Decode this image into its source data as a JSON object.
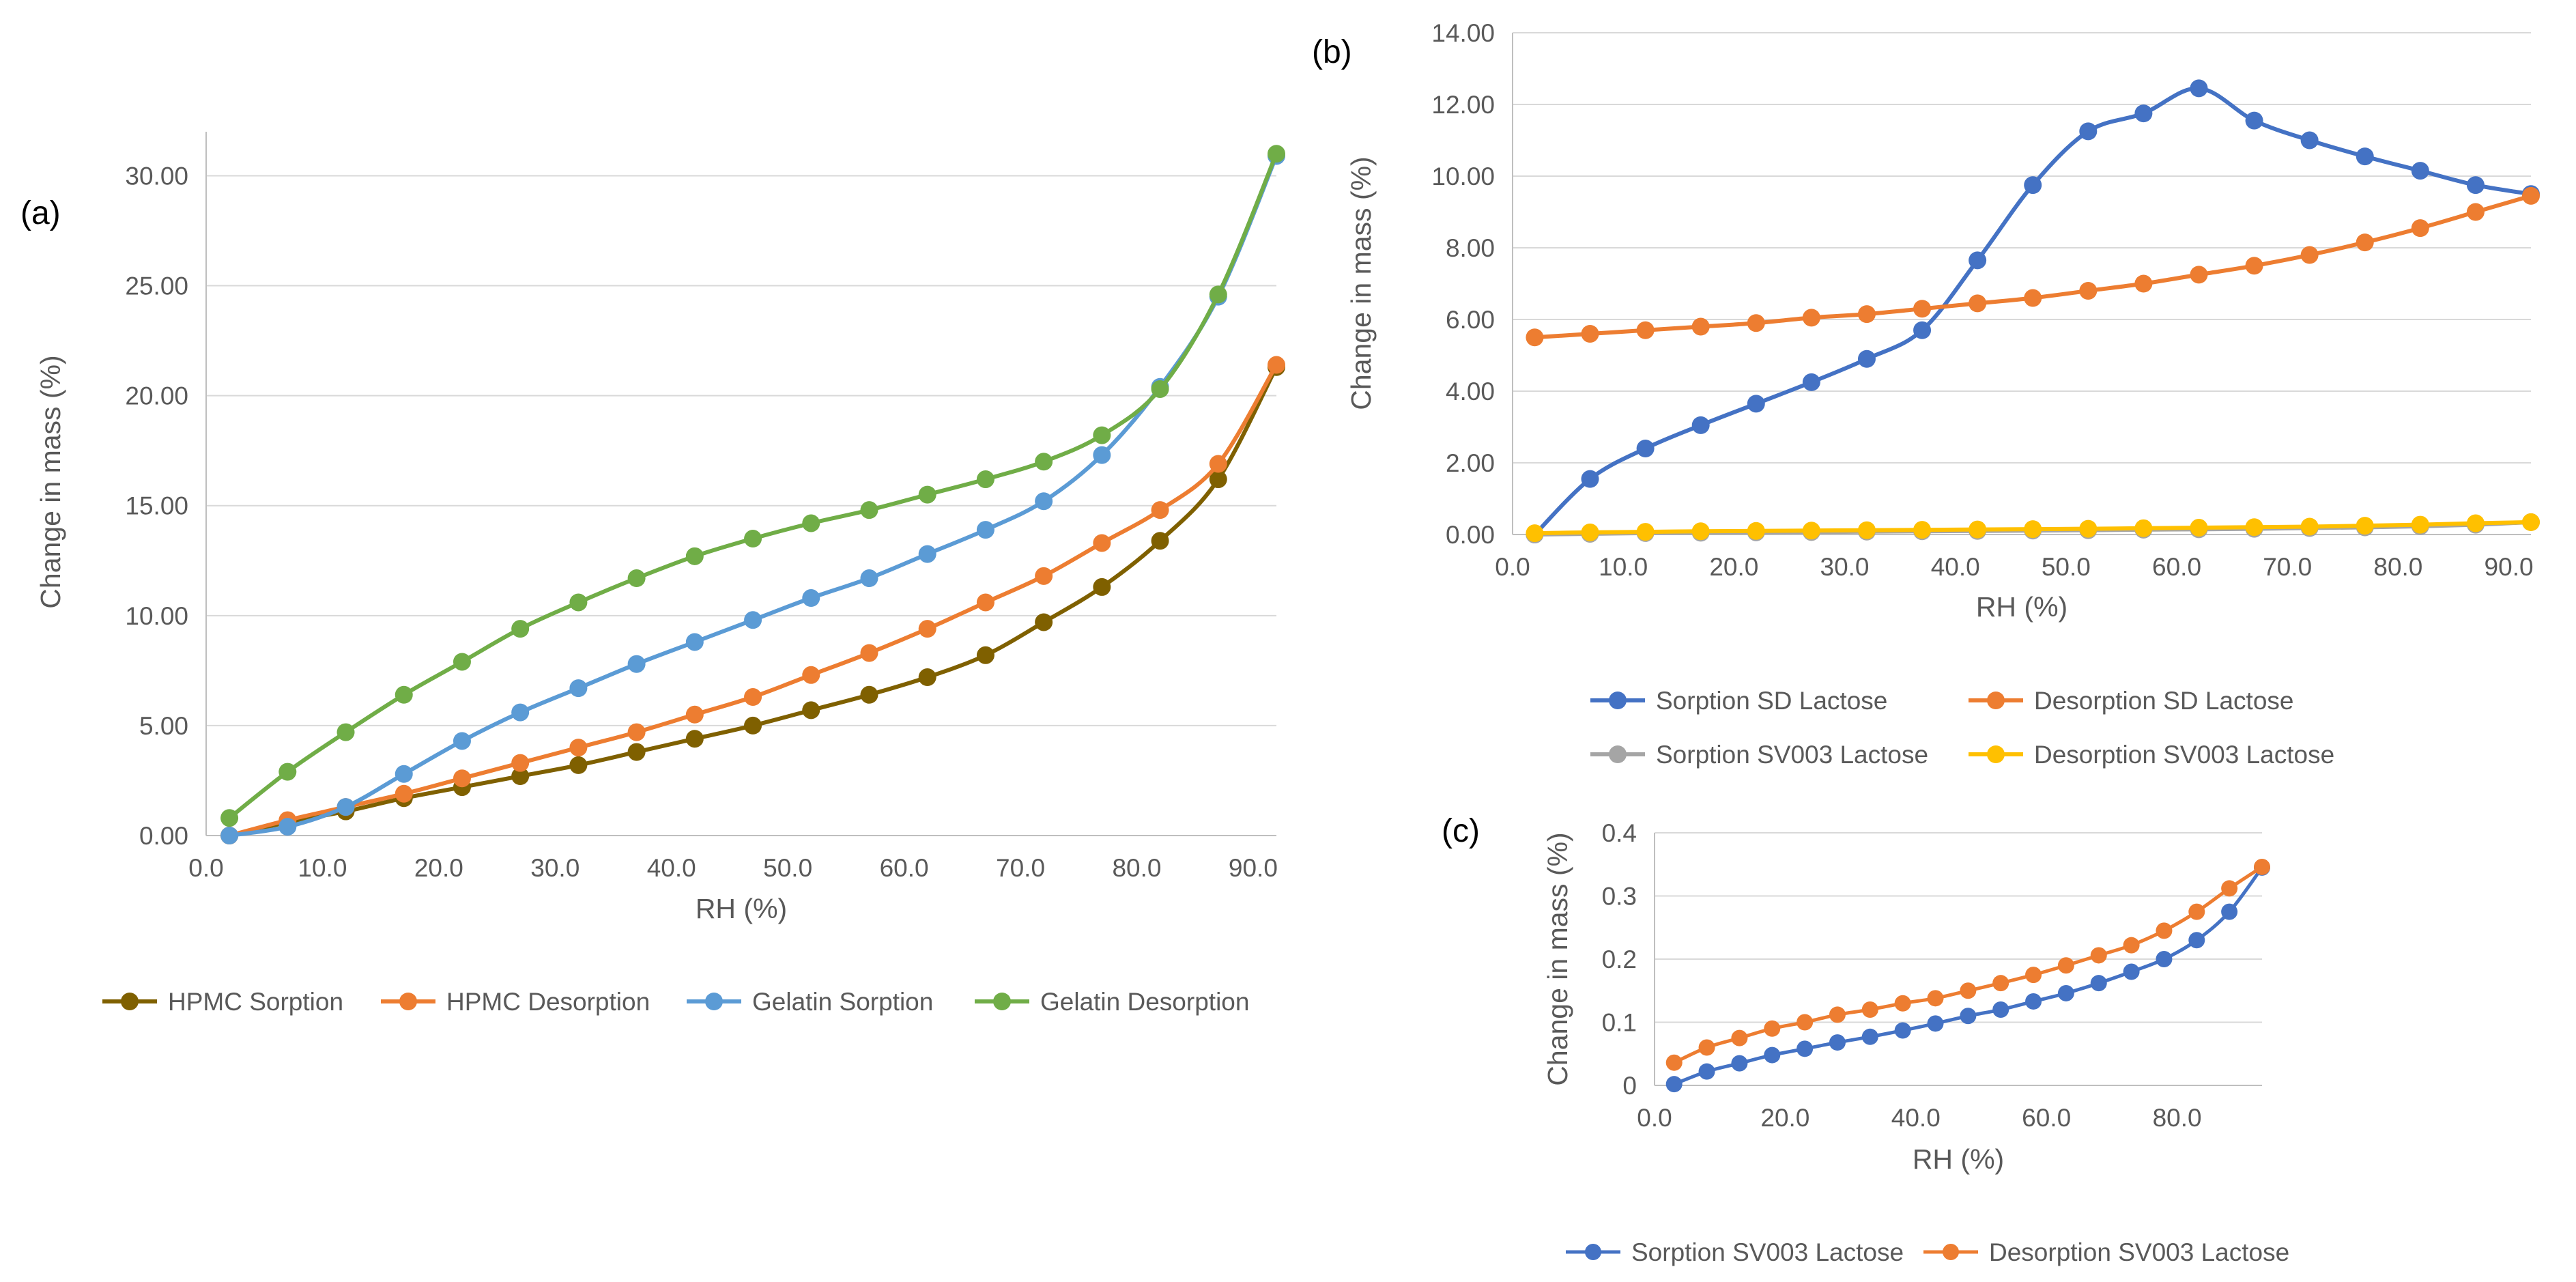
{
  "panels": [
    {
      "label": "(a)"
    },
    {
      "label": "(b)"
    },
    {
      "label": "(c)"
    }
  ],
  "chart_data": [
    {
      "type": "line",
      "panel": "(a)",
      "xlabel": "RH (%)",
      "ylabel": "Change in mass (%)",
      "xlim": [
        0,
        92
      ],
      "ylim": [
        0,
        32
      ],
      "xticks": [
        0,
        10,
        20,
        30,
        40,
        50,
        60,
        70,
        80,
        90
      ],
      "xtick_labels": [
        "0.0",
        "10.0",
        "20.0",
        "30.0",
        "40.0",
        "50.0",
        "60.0",
        "70.0",
        "80.0",
        "90.0"
      ],
      "yticks": [
        0,
        5,
        10,
        15,
        20,
        25,
        30
      ],
      "ytick_labels": [
        "0.00",
        "5.00",
        "10.00",
        "15.00",
        "20.00",
        "25.00",
        "30.00"
      ],
      "grid": true,
      "legend_position": "bottom",
      "x": [
        2,
        7,
        12,
        17,
        22,
        27,
        32,
        37,
        42,
        47,
        52,
        57,
        62,
        67,
        72,
        77,
        82,
        87,
        92
      ],
      "series": [
        {
          "name": "HPMC Sorption",
          "color": "#7f6000",
          "values": [
            0,
            0.6,
            1.1,
            1.7,
            2.2,
            2.7,
            3.2,
            3.8,
            4.4,
            5.0,
            5.7,
            6.4,
            7.2,
            8.2,
            9.7,
            11.3,
            13.4,
            16.2,
            21.3
          ]
        },
        {
          "name": "HPMC Desorption",
          "color": "#ed7d31",
          "values": [
            0,
            0.7,
            1.3,
            1.9,
            2.6,
            3.3,
            4.0,
            4.7,
            5.5,
            6.3,
            7.3,
            8.3,
            9.4,
            10.6,
            11.8,
            13.3,
            14.8,
            16.9,
            21.4
          ]
        },
        {
          "name": "Gelatin Sorption",
          "color": "#5b9bd5",
          "values": [
            0,
            0.4,
            1.3,
            2.8,
            4.3,
            5.6,
            6.7,
            7.8,
            8.8,
            9.8,
            10.8,
            11.7,
            12.8,
            13.9,
            15.2,
            17.3,
            20.4,
            24.5,
            30.9
          ]
        },
        {
          "name": "Gelatin Desorption",
          "color": "#70ad47",
          "values": [
            0.8,
            2.9,
            4.7,
            6.4,
            7.9,
            9.4,
            10.6,
            11.7,
            12.7,
            13.5,
            14.2,
            14.8,
            15.5,
            16.2,
            17.0,
            18.2,
            20.3,
            24.6,
            31.0
          ]
        }
      ]
    },
    {
      "type": "line",
      "panel": "(b)",
      "xlabel": "RH (%)",
      "ylabel": "Change in mass (%)",
      "xlim": [
        0,
        92
      ],
      "ylim": [
        0,
        14
      ],
      "xticks": [
        0,
        10,
        20,
        30,
        40,
        50,
        60,
        70,
        80,
        90
      ],
      "xtick_labels": [
        "0.0",
        "10.0",
        "20.0",
        "30.0",
        "40.0",
        "50.0",
        "60.0",
        "70.0",
        "80.0",
        "90.0"
      ],
      "yticks": [
        0,
        2,
        4,
        6,
        8,
        10,
        12,
        14
      ],
      "ytick_labels": [
        "0.00",
        "2.00",
        "4.00",
        "6.00",
        "8.00",
        "10.00",
        "12.00",
        "14.00"
      ],
      "grid": true,
      "legend_position": "bottom",
      "x": [
        2,
        7,
        12,
        17,
        22,
        27,
        32,
        37,
        42,
        47,
        52,
        57,
        62,
        67,
        72,
        77,
        82,
        87,
        92
      ],
      "series": [
        {
          "name": "Sorption SD Lactose",
          "color": "#4472c4",
          "values": [
            0,
            1.55,
            2.4,
            3.05,
            3.65,
            4.25,
            4.9,
            5.7,
            7.65,
            9.75,
            11.25,
            11.75,
            12.45,
            11.55,
            11.0,
            10.55,
            10.15,
            9.75,
            9.5
          ]
        },
        {
          "name": "Desorption SD Lactose",
          "color": "#ed7d31",
          "values": [
            5.5,
            5.6,
            5.7,
            5.8,
            5.9,
            6.05,
            6.15,
            6.3,
            6.45,
            6.6,
            6.8,
            7.0,
            7.25,
            7.5,
            7.8,
            8.15,
            8.55,
            9.0,
            9.45
          ]
        },
        {
          "name": "Sorption SV003 Lactose",
          "color": "#a5a5a5",
          "values": [
            0,
            0.02,
            0.04,
            0.05,
            0.06,
            0.07,
            0.08,
            0.09,
            0.1,
            0.11,
            0.12,
            0.135,
            0.145,
            0.16,
            0.18,
            0.2,
            0.23,
            0.275,
            0.345
          ]
        },
        {
          "name": "Desorption SV003 Lactose",
          "color": "#ffc000",
          "values": [
            0.035,
            0.06,
            0.075,
            0.09,
            0.1,
            0.11,
            0.12,
            0.13,
            0.14,
            0.15,
            0.16,
            0.175,
            0.19,
            0.205,
            0.22,
            0.245,
            0.275,
            0.315,
            0.345
          ]
        }
      ]
    },
    {
      "type": "line",
      "panel": "(c)",
      "xlabel": "RH (%)",
      "ylabel": "Change in mass (%)",
      "xlim": [
        0,
        93
      ],
      "ylim": [
        0,
        0.4
      ],
      "xticks": [
        0,
        20,
        40,
        60,
        80
      ],
      "xtick_labels": [
        "0.0",
        "20.0",
        "40.0",
        "60.0",
        "80.0"
      ],
      "yticks": [
        0,
        0.1,
        0.2,
        0.3,
        0.4
      ],
      "ytick_labels": [
        "0",
        "0.1",
        "0.2",
        "0.3",
        "0.4"
      ],
      "grid": true,
      "legend_position": "bottom",
      "x": [
        3,
        8,
        13,
        18,
        23,
        28,
        33,
        38,
        43,
        48,
        53,
        58,
        63,
        68,
        73,
        78,
        83,
        88,
        93
      ],
      "series": [
        {
          "name": "Sorption SV003 Lactose",
          "color": "#4472c4",
          "values": [
            0.002,
            0.022,
            0.035,
            0.048,
            0.058,
            0.068,
            0.077,
            0.087,
            0.098,
            0.11,
            0.12,
            0.133,
            0.146,
            0.162,
            0.18,
            0.2,
            0.23,
            0.275,
            0.345
          ]
        },
        {
          "name": "Desorption SV003 Lactose",
          "color": "#ed7d31",
          "values": [
            0.036,
            0.06,
            0.075,
            0.09,
            0.1,
            0.112,
            0.12,
            0.13,
            0.138,
            0.15,
            0.162,
            0.175,
            0.19,
            0.206,
            0.222,
            0.245,
            0.275,
            0.312,
            0.346
          ]
        }
      ]
    }
  ]
}
